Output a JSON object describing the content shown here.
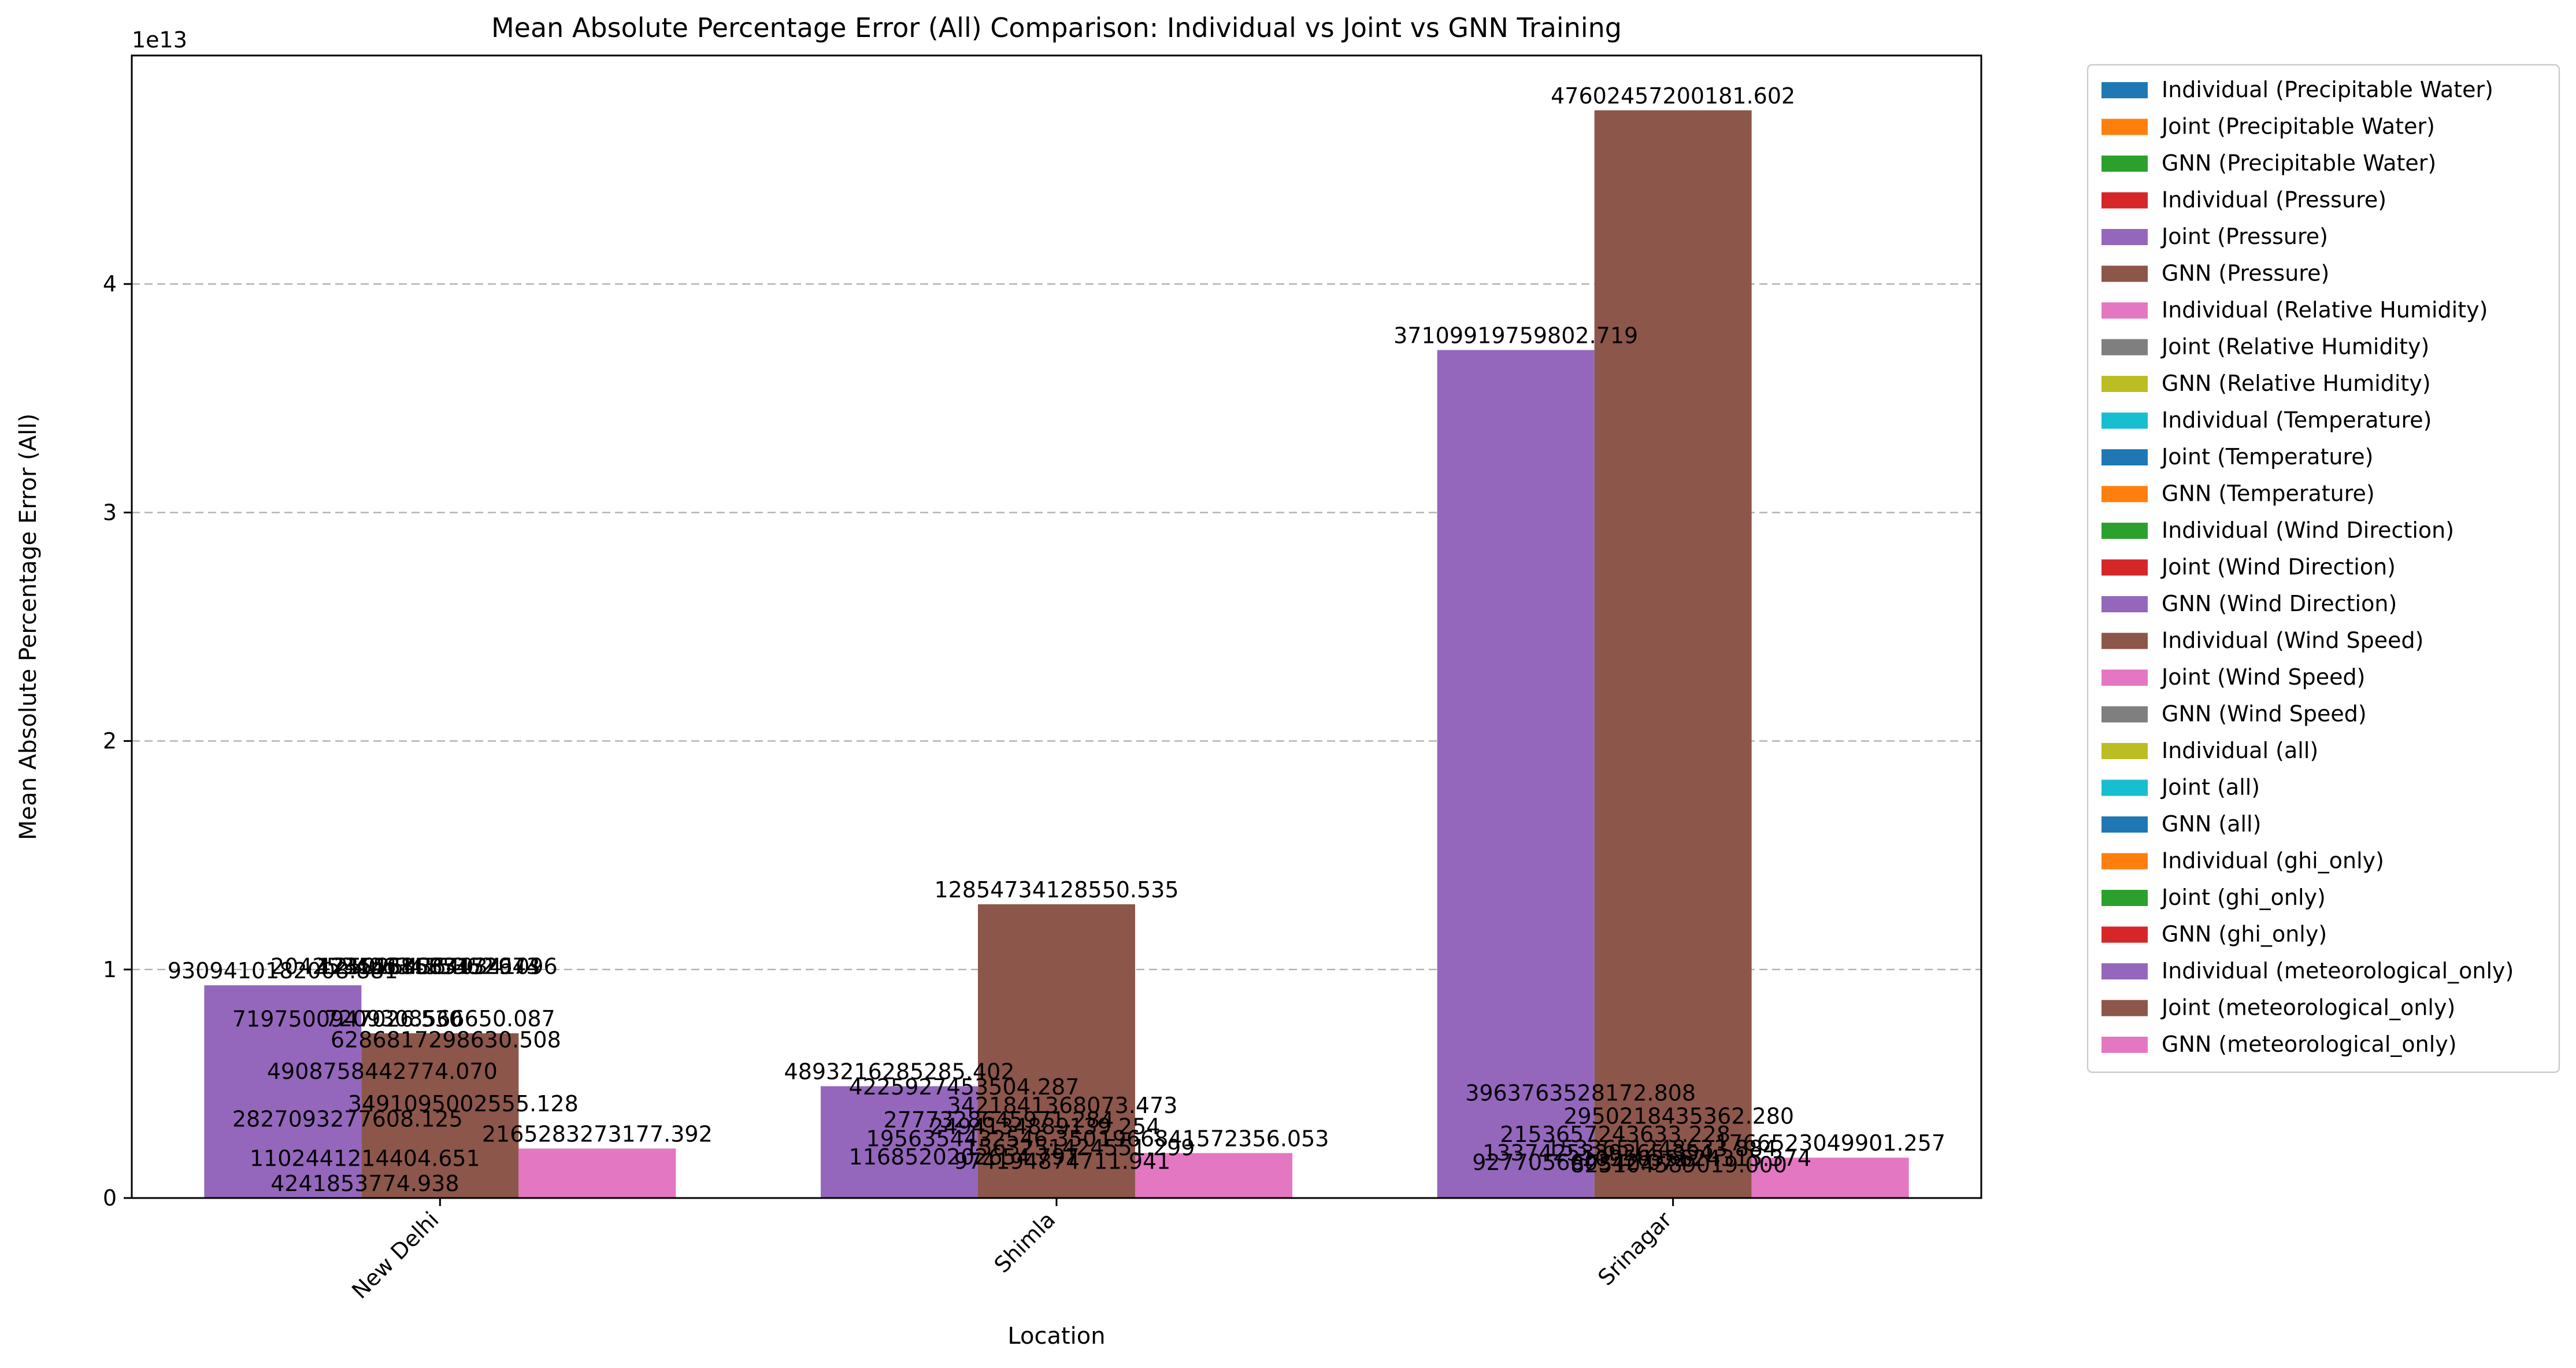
{
  "chart_data": {
    "type": "bar",
    "title": "Mean Absolute Percentage Error (All) Comparison: Individual vs Joint vs GNN Training",
    "xlabel": "Location",
    "ylabel": "Mean Absolute Percentage Error (All)",
    "y_exponent_label": "1e13",
    "y_scale": 10000000000000.0,
    "ylim": [
      0,
      50000000000000.0
    ],
    "yticks": [
      0,
      1,
      2,
      3,
      4
    ],
    "grid": "y",
    "legend_position": "outside-right",
    "categories": [
      "New Delhi",
      "Shimla",
      "Srinagar"
    ],
    "series": [
      {
        "name": "Individual (Precipitable Water)",
        "color": "#1f77b4",
        "values": [
          0,
          0,
          0
        ]
      },
      {
        "name": "Joint (Precipitable Water)",
        "color": "#ff7f0e",
        "values": [
          0,
          0,
          0
        ]
      },
      {
        "name": "GNN (Precipitable Water)",
        "color": "#2ca02c",
        "values": [
          0,
          0,
          0
        ]
      },
      {
        "name": "Individual (Pressure)",
        "color": "#d62728",
        "values": [
          0,
          0,
          0
        ]
      },
      {
        "name": "Joint (Pressure)",
        "color": "#9467bd",
        "values": [
          0,
          0,
          0
        ]
      },
      {
        "name": "GNN (Pressure)",
        "color": "#8c564b",
        "values": [
          0,
          0,
          0
        ]
      },
      {
        "name": "Individual (Relative Humidity)",
        "color": "#e377c2",
        "values": [
          0,
          0,
          0
        ]
      },
      {
        "name": "Joint (Relative Humidity)",
        "color": "#7f7f7f",
        "values": [
          0,
          0,
          0
        ]
      },
      {
        "name": "GNN (Relative Humidity)",
        "color": "#bcbd22",
        "values": [
          0,
          0,
          0
        ]
      },
      {
        "name": "Individual (Temperature)",
        "color": "#17becf",
        "values": [
          0,
          0,
          0
        ]
      },
      {
        "name": "Joint (Temperature)",
        "color": "#1f77b4",
        "values": [
          0,
          0,
          0
        ]
      },
      {
        "name": "GNN (Temperature)",
        "color": "#ff7f0e",
        "values": [
          0,
          0,
          0
        ]
      },
      {
        "name": "Individual (Wind Direction)",
        "color": "#2ca02c",
        "values": [
          0,
          0,
          0
        ]
      },
      {
        "name": "Joint (Wind Direction)",
        "color": "#d62728",
        "values": [
          0,
          0,
          0
        ]
      },
      {
        "name": "GNN (Wind Direction)",
        "color": "#9467bd",
        "values": [
          0,
          0,
          0
        ]
      },
      {
        "name": "Individual (Wind Speed)",
        "color": "#8c564b",
        "values": [
          0,
          0,
          0
        ]
      },
      {
        "name": "Joint (Wind Speed)",
        "color": "#e377c2",
        "values": [
          0,
          0,
          0
        ]
      },
      {
        "name": "GNN (Wind Speed)",
        "color": "#7f7f7f",
        "values": [
          0,
          0,
          0
        ]
      },
      {
        "name": "Individual (all)",
        "color": "#bcbd22",
        "values": [
          0,
          0,
          0
        ]
      },
      {
        "name": "Joint (all)",
        "color": "#17becf",
        "values": [
          0,
          0,
          0
        ]
      },
      {
        "name": "GNN (all)",
        "color": "#1f77b4",
        "values": [
          0,
          0,
          0
        ]
      },
      {
        "name": "Individual (ghi_only)",
        "color": "#ff7f0e",
        "values": [
          0,
          0,
          0
        ]
      },
      {
        "name": "Joint (ghi_only)",
        "color": "#2ca02c",
        "values": [
          0,
          0,
          0
        ]
      },
      {
        "name": "GNN (ghi_only)",
        "color": "#d62728",
        "values": [
          0,
          0,
          0
        ]
      },
      {
        "name": "Individual (meteorological_only)",
        "color": "#9467bd",
        "values": [
          9309410182008.88,
          4893216285285.402,
          37109919759802.72
        ]
      },
      {
        "name": "Joint (meteorological_only)",
        "color": "#8c564b",
        "values": [
          7209308566650.087,
          12854734128550.535,
          47602457200181.6
        ]
      },
      {
        "name": "GNN (meteorological_only)",
        "color": "#e377c2",
        "values": [
          2165283273177.392,
          1966841572356.053,
          1766523049901.257
        ]
      }
    ],
    "bar_labels": {
      "Individual (meteorological_only)": [
        "9309410182008.881",
        "4893216285285.402",
        "37109919759802.719"
      ],
      "Joint (meteorological_only)": [
        "7209308566650.087",
        "12854734128550.535",
        "47602457200181.602"
      ],
      "GNN (meteorological_only)": [
        "2165283273177.392",
        "1966841572356.053",
        "1766523049901.257"
      ]
    },
    "overlapping_labels": {
      "New Delhi": [
        {
          "text": "7197500947026.530",
          "value": 7197500947026.53
        },
        {
          "text": "6286817298630.508",
          "value": 6286817298630.508
        },
        {
          "text": "4908758442774.070",
          "value": 4908758442774.07
        },
        {
          "text": "4235461583452974",
          "value": 4235461583452974
        },
        {
          "text": "4241853774.938",
          "value": 4241853774.938
        },
        {
          "text": "3491095002555.128",
          "value": 3491095002555.128
        },
        {
          "text": "2827093277608.125",
          "value": 2827093277608.125
        },
        {
          "text": "2502543640341096",
          "value": 2502543640341096
        },
        {
          "text": "2042534063455362",
          "value": 2042534063455362
        },
        {
          "text": "1745538665172643",
          "value": 1745538665172643
        },
        {
          "text": "1102441214404.651",
          "value": 1102441214404.651
        }
      ],
      "Shimla": [
        {
          "text": "4225927453504.287",
          "value": 4225927453504.287
        },
        {
          "text": "3421841368073.473",
          "value": 3421841368073.473
        },
        {
          "text": "2777328645971.284",
          "value": 2777328645971.284
        },
        {
          "text": "2494134889139.254",
          "value": 2494134889139.254
        },
        {
          "text": "1956354432546.350",
          "value": 1956354432546.35
        },
        {
          "text": "1563251424551.299",
          "value": 1563251424551.299
        },
        {
          "text": "1168520202654.797",
          "value": 1168520202654.797
        },
        {
          "text": "974194874711.941",
          "value": 974194874711.941
        }
      ],
      "Srinagar": [
        {
          "text": "3963763528172.808",
          "value": 3963763528172.808
        },
        {
          "text": "2950218435362.280",
          "value": 2950218435362.28
        },
        {
          "text": "2153657243633.228",
          "value": 2153657243633.228
        },
        {
          "text": "1533651248633.884",
          "value": 1533651248633.884
        },
        {
          "text": "1337425339265.354",
          "value": 1337425339265.354
        },
        {
          "text": "1095655624315.374",
          "value": 1095655624315.374
        },
        {
          "text": "927705660342.074",
          "value": 927705660342.074
        },
        {
          "text": "825104589019.000",
          "value": 825104589019.0
        }
      ]
    }
  }
}
